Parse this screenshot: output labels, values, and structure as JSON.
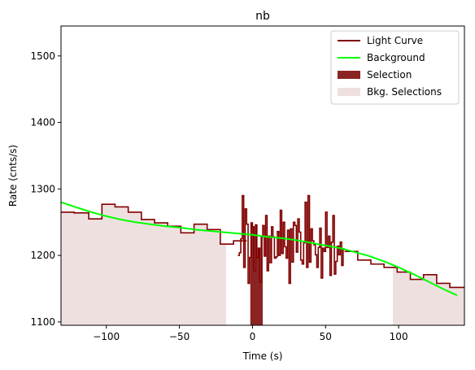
{
  "chart_data": {
    "type": "line",
    "title": "nb",
    "xlabel": "Time (s)",
    "ylabel": "Rate (cnts/s)",
    "xlim": [
      -131,
      145
    ],
    "ylim": [
      1095,
      1545
    ],
    "xticks": [
      -100,
      -50,
      0,
      50,
      100
    ],
    "xtick_labels": [
      "−100",
      "−50",
      "0",
      "50",
      "100"
    ],
    "yticks": [
      1100,
      1200,
      1300,
      1400,
      1500
    ],
    "ytick_labels": [
      "1100",
      "1200",
      "1300",
      "1400",
      "1500"
    ],
    "grid": false,
    "legend_position": "top-right",
    "legend": [
      {
        "label": "Light Curve",
        "kind": "line",
        "color": "#800000"
      },
      {
        "label": "Background",
        "kind": "line",
        "color": "#00ff00"
      },
      {
        "label": "Selection",
        "kind": "patch",
        "color": "#8b2323"
      },
      {
        "label": "Bkg. Selections",
        "kind": "patch",
        "color": "#efe0e0"
      }
    ],
    "series": [
      {
        "name": "Light Curve",
        "style": "steps",
        "color": "#800000",
        "segments": [
          {
            "edges": [
              -131,
              -122,
              -112,
              -103,
              -94,
              -85,
              -76,
              -67,
              -58,
              -49,
              -40,
              -31,
              -22,
              -13,
              -4
            ],
            "values": [
              1265,
              1264,
              1255,
              1277,
              1273,
              1265,
              1254,
              1249,
              1244,
              1234,
              1247,
              1239,
              1217,
              1222
            ]
          },
          {
            "edges": [
              -10,
              -9,
              -8,
              -7,
              -6,
              -5,
              -4,
              -3,
              -2,
              -1,
              0,
              1,
              2,
              3,
              4,
              5,
              6,
              7,
              8,
              9,
              10,
              11,
              12,
              13,
              14,
              15,
              16,
              17,
              18,
              19,
              20,
              21,
              22,
              23,
              24,
              25,
              26,
              27,
              28,
              29,
              30,
              31,
              32,
              33,
              34,
              35,
              36,
              37,
              38,
              39,
              40,
              41,
              42,
              43,
              44,
              45,
              46,
              47,
              48,
              49,
              50,
              51,
              52,
              53,
              54,
              55,
              56,
              57,
              58,
              59,
              60,
              61,
              62,
              63
            ],
            "values": [
              1200,
              1204,
              1225,
              1290,
              1182,
              1270,
              1247,
              1158,
              1197,
              1249,
              1243,
              1177,
              1246,
              1197,
              1211,
              1160,
              1228,
              1245,
              1199,
              1260,
              1177,
              1229,
              1189,
              1243,
              1228,
              1196,
              1198,
              1236,
              1200,
              1268,
              1203,
              1250,
              1213,
              1196,
              1238,
              1158,
              1240,
              1190,
              1250,
              1245,
              1205,
              1255,
              1235,
              1193,
              1187,
              1219,
              1280,
              1182,
              1290,
              1190,
              1240,
              1222,
              1216,
              1201,
              1182,
              1212,
              1241,
              1166,
              1211,
              1206,
              1265,
              1212,
              1229,
              1170,
              1220,
              1260,
              1172,
              1191,
              1214,
              1201,
              1220,
              1185,
              1210
            ]
          },
          {
            "edges": [
              63,
              72,
              81,
              90,
              99,
              108,
              117,
              126,
              135,
              145
            ],
            "values": [
              1206,
              1193,
              1187,
              1182,
              1175,
              1164,
              1171,
              1158,
              1152
            ]
          }
        ]
      },
      {
        "name": "Background",
        "style": "line",
        "color": "#00ff00",
        "x": [
          -131,
          -120,
          -110,
          -100,
          -90,
          -80,
          -70,
          -60,
          -50,
          -40,
          -30,
          -20,
          -10,
          0,
          10,
          20,
          30,
          40,
          50,
          60,
          70,
          80,
          90,
          100,
          110,
          120,
          130,
          140
        ],
        "y": [
          1280,
          1272,
          1265,
          1259,
          1254,
          1250,
          1247,
          1244,
          1242,
          1239,
          1237,
          1235,
          1233,
          1231,
          1228,
          1226,
          1223,
          1219,
          1215,
          1211,
          1205,
          1199,
          1191,
          1182,
          1172,
          1161,
          1150,
          1140
        ]
      }
    ],
    "selection": {
      "x": [
        -1.5,
        7
      ],
      "color": "#8b2323"
    },
    "bkg_selections": [
      {
        "x": [
          -131,
          -18
        ],
        "color": "#efe0e0"
      },
      {
        "x": [
          96,
          145
        ],
        "color": "#efe0e0"
      }
    ]
  }
}
